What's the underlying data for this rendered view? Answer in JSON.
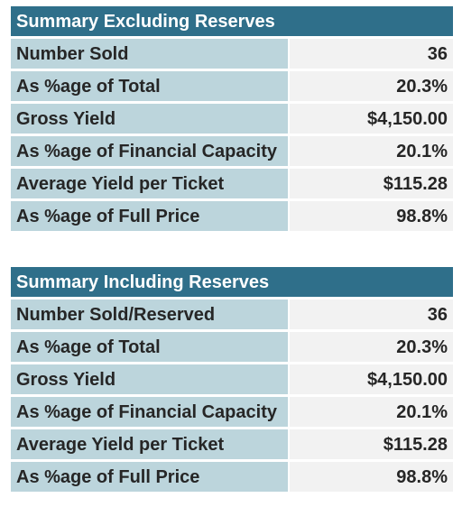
{
  "tables": [
    {
      "header": "Summary Excluding Reserves",
      "rows": [
        {
          "label": "Number Sold",
          "value": "36"
        },
        {
          "label": "As %age of Total",
          "value": "20.3%"
        },
        {
          "label": "Gross Yield",
          "value": "$4,150.00"
        },
        {
          "label": "As %age of Financial Capacity",
          "value": "20.1%"
        },
        {
          "label": "Average Yield per Ticket",
          "value": "$115.28"
        },
        {
          "label": "As %age of Full Price",
          "value": "98.8%"
        }
      ]
    },
    {
      "header": "Summary Including Reserves",
      "rows": [
        {
          "label": "Number Sold/Reserved",
          "value": "36"
        },
        {
          "label": "As %age of Total",
          "value": "20.3%"
        },
        {
          "label": "Gross Yield",
          "value": "$4,150.00"
        },
        {
          "label": "As %age of Financial Capacity",
          "value": "20.1%"
        },
        {
          "label": "Average Yield per Ticket",
          "value": "$115.28"
        },
        {
          "label": "As %age of Full Price",
          "value": "98.8%"
        }
      ]
    }
  ],
  "colors": {
    "header_bg": "#2f6f8a",
    "label_bg": "#bcd5dc",
    "value_bg": "#f2f2f2"
  }
}
